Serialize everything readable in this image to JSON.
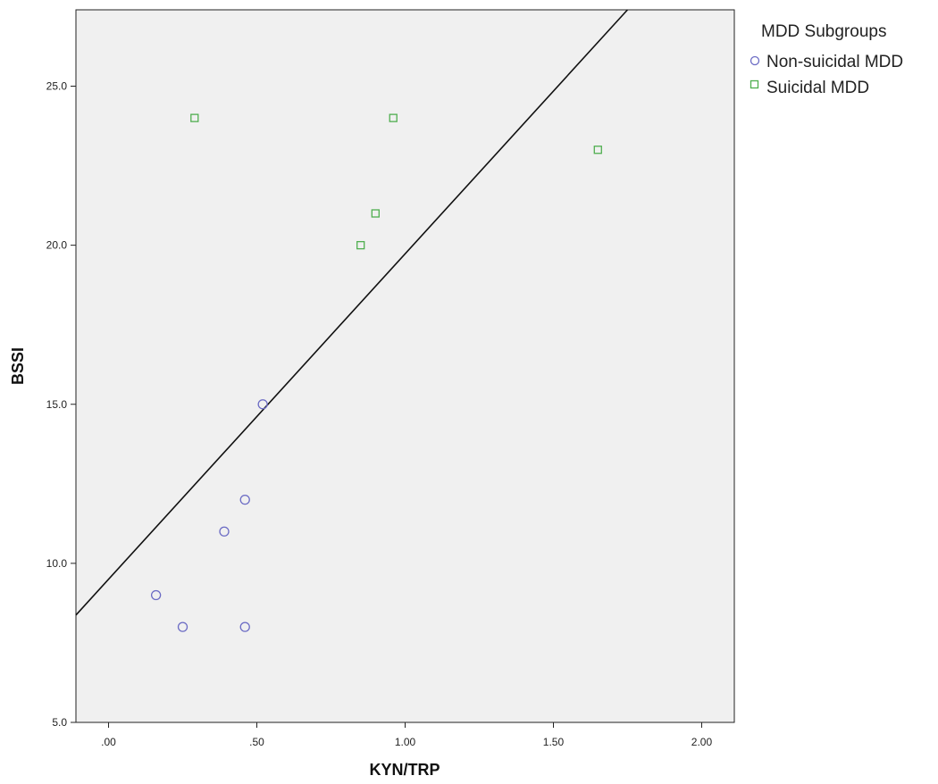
{
  "chart_data": {
    "type": "scatter",
    "xlabel": "KYN/TRP",
    "ylabel": "BSSI",
    "xlim": [
      -0.11,
      2.11
    ],
    "ylim": [
      5.0,
      27.4
    ],
    "x_ticks": [
      ".00",
      ".50",
      "1.00",
      "1.50",
      "2.00"
    ],
    "x_tick_values": [
      0,
      0.5,
      1.0,
      1.5,
      2.0
    ],
    "y_ticks": [
      "5.0",
      "10.0",
      "15.0",
      "20.0",
      "25.0"
    ],
    "y_tick_values": [
      5,
      10,
      15,
      20,
      25
    ],
    "grid": false,
    "legend": {
      "title": "MDD Subgroups",
      "placement": "top-right-outside"
    },
    "series": [
      {
        "name": "Non-suicidal MDD",
        "marker": "circle",
        "color": "#6b6bc4",
        "points": [
          {
            "x": 0.16,
            "y": 9
          },
          {
            "x": 0.25,
            "y": 8
          },
          {
            "x": 0.39,
            "y": 11
          },
          {
            "x": 0.46,
            "y": 12
          },
          {
            "x": 0.46,
            "y": 8
          },
          {
            "x": 0.52,
            "y": 15
          }
        ]
      },
      {
        "name": "Suicidal MDD",
        "marker": "square",
        "color": "#4fae4f",
        "points": [
          {
            "x": 0.29,
            "y": 24
          },
          {
            "x": 0.85,
            "y": 20
          },
          {
            "x": 0.9,
            "y": 21
          },
          {
            "x": 0.96,
            "y": 24
          },
          {
            "x": 1.65,
            "y": 23
          }
        ]
      }
    ],
    "fit_line": {
      "color": "#111111",
      "slope": 10.23,
      "intercept": 9.5
    },
    "colors": {
      "plot_background": "#f0f0f0",
      "axis": "#222222"
    }
  }
}
